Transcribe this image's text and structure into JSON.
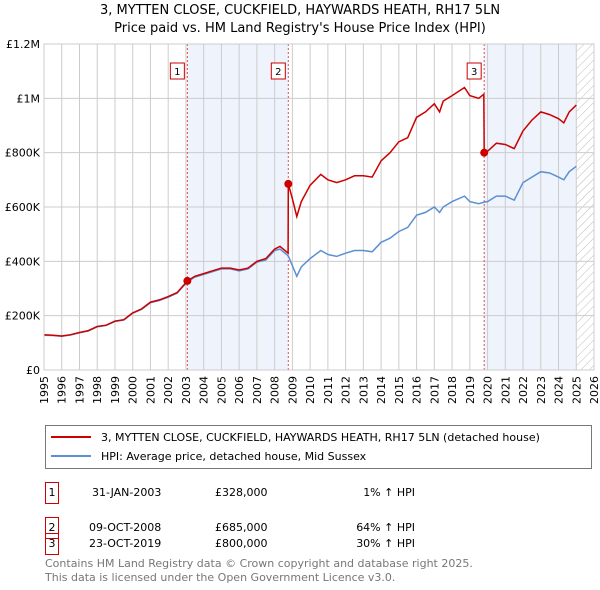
{
  "chart_data": {
    "type": "line",
    "title": "3, MYTTEN CLOSE, CUCKFIELD, HAYWARDS HEATH, RH17 5LN",
    "subtitle": "Price paid vs. HM Land Registry's House Price Index (HPI)",
    "xlim": [
      1995,
      2026
    ],
    "ylim": [
      0,
      1200000
    ],
    "x_ticks": [
      "1995",
      "1996",
      "1997",
      "1998",
      "1999",
      "2000",
      "2001",
      "2002",
      "2003",
      "2004",
      "2005",
      "2006",
      "2007",
      "2008",
      "2009",
      "2010",
      "2011",
      "2012",
      "2013",
      "2014",
      "2015",
      "2016",
      "2017",
      "2018",
      "2019",
      "2020",
      "2021",
      "2022",
      "2023",
      "2024",
      "2025",
      "2026"
    ],
    "y_ticks": [
      {
        "v": 0,
        "label": "£0"
      },
      {
        "v": 200000,
        "label": "£200K"
      },
      {
        "v": 400000,
        "label": "£400K"
      },
      {
        "v": 600000,
        "label": "£600K"
      },
      {
        "v": 800000,
        "label": "£800K"
      },
      {
        "v": 1000000,
        "label": "£1M"
      },
      {
        "v": 1200000,
        "label": "£1.2M"
      }
    ],
    "grid": true,
    "shaded_periods": [
      [
        2003.08,
        2008.77
      ],
      [
        2019.81,
        2025.0
      ]
    ],
    "forecast_hatch_from": 2025.0,
    "series": [
      {
        "name": "3, MYTTEN CLOSE, CUCKFIELD, HAYWARDS HEATH, RH17 5LN (detached house)",
        "color": "#cc0000",
        "x": [
          1995,
          1995.5,
          1996,
          1996.5,
          1997,
          1997.5,
          1998,
          1998.5,
          1999,
          1999.5,
          2000,
          2000.5,
          2001,
          2001.5,
          2002,
          2002.5,
          2003.08,
          2003.5,
          2004,
          2004.5,
          2005,
          2005.5,
          2006,
          2006.5,
          2007,
          2007.5,
          2008,
          2008.3,
          2008.76,
          2008.77,
          2009,
          2009.25,
          2009.5,
          2010,
          2010.6,
          2011,
          2011.5,
          2012,
          2012.5,
          2013,
          2013.5,
          2014,
          2014.5,
          2015,
          2015.5,
          2016,
          2016.5,
          2017,
          2017.3,
          2017.5,
          2018,
          2018.7,
          2019,
          2019.5,
          2019.79,
          2019.81,
          2020,
          2020.5,
          2021,
          2021.5,
          2022,
          2022.5,
          2023,
          2023.5,
          2024,
          2024.3,
          2024.6,
          2025
        ],
        "y": [
          130000,
          128000,
          125000,
          130000,
          138000,
          145000,
          160000,
          165000,
          180000,
          185000,
          210000,
          225000,
          250000,
          258000,
          270000,
          285000,
          328000,
          345000,
          355000,
          365000,
          375000,
          375000,
          368000,
          375000,
          400000,
          410000,
          445000,
          455000,
          430000,
          685000,
          630000,
          565000,
          620000,
          680000,
          720000,
          700000,
          690000,
          700000,
          715000,
          715000,
          710000,
          770000,
          800000,
          840000,
          855000,
          930000,
          950000,
          980000,
          950000,
          990000,
          1010000,
          1040000,
          1010000,
          1000000,
          1015000,
          800000,
          805000,
          835000,
          830000,
          815000,
          880000,
          920000,
          950000,
          940000,
          925000,
          910000,
          950000,
          975000
        ]
      },
      {
        "name": "HPI: Average price, detached house, Mid Sussex",
        "color": "#5b8fd4",
        "x": [
          1995,
          1995.5,
          1996,
          1996.5,
          1997,
          1997.5,
          1998,
          1998.5,
          1999,
          1999.5,
          2000,
          2000.5,
          2001,
          2001.5,
          2002,
          2002.5,
          2003.08,
          2003.5,
          2004,
          2004.5,
          2005,
          2005.5,
          2006,
          2006.5,
          2007,
          2007.5,
          2008,
          2008.3,
          2008.77,
          2009.25,
          2009.5,
          2010,
          2010.6,
          2011,
          2011.5,
          2012,
          2012.5,
          2013,
          2013.5,
          2014,
          2014.5,
          2015,
          2015.5,
          2016,
          2016.5,
          2017,
          2017.3,
          2017.5,
          2018,
          2018.7,
          2019,
          2019.5,
          2019.81,
          2020,
          2020.5,
          2021,
          2021.5,
          2022,
          2022.5,
          2023,
          2023.5,
          2024,
          2024.3,
          2024.6,
          2025
        ],
        "y": [
          128000,
          127000,
          124000,
          129000,
          137000,
          144000,
          159000,
          164000,
          179000,
          184000,
          209000,
          223000,
          248000,
          256000,
          268000,
          283000,
          325000,
          342000,
          352000,
          362000,
          372000,
          372000,
          365000,
          372000,
          397000,
          405000,
          440000,
          445000,
          420000,
          345000,
          380000,
          410000,
          440000,
          425000,
          418000,
          430000,
          440000,
          440000,
          435000,
          470000,
          485000,
          510000,
          525000,
          570000,
          580000,
          600000,
          580000,
          600000,
          620000,
          640000,
          620000,
          612000,
          618000,
          620000,
          640000,
          640000,
          625000,
          690000,
          710000,
          730000,
          725000,
          710000,
          700000,
          730000,
          750000
        ]
      }
    ],
    "sales": [
      {
        "n": "1",
        "x": 2003.08,
        "y": 328000
      },
      {
        "n": "2",
        "x": 2008.77,
        "y": 685000
      },
      {
        "n": "3",
        "x": 2019.81,
        "y": 800000
      }
    ]
  },
  "legend": {
    "property": "3, MYTTEN CLOSE, CUCKFIELD, HAYWARDS HEATH, RH17 5LN (detached house)",
    "hpi": "HPI: Average price, detached house, Mid Sussex"
  },
  "transactions": [
    {
      "n": "1",
      "date": "31-JAN-2003",
      "price": "£328,000",
      "hpi": "1% ↑ HPI"
    },
    {
      "n": "2",
      "date": "09-OCT-2008",
      "price": "£685,000",
      "hpi": "64% ↑ HPI"
    },
    {
      "n": "3",
      "date": "23-OCT-2019",
      "price": "£800,000",
      "hpi": "30% ↑ HPI"
    }
  ],
  "footer": {
    "line1": "Contains HM Land Registry data © Crown copyright and database right 2025.",
    "line2": "This data is licensed under the Open Government Licence v3.0."
  }
}
